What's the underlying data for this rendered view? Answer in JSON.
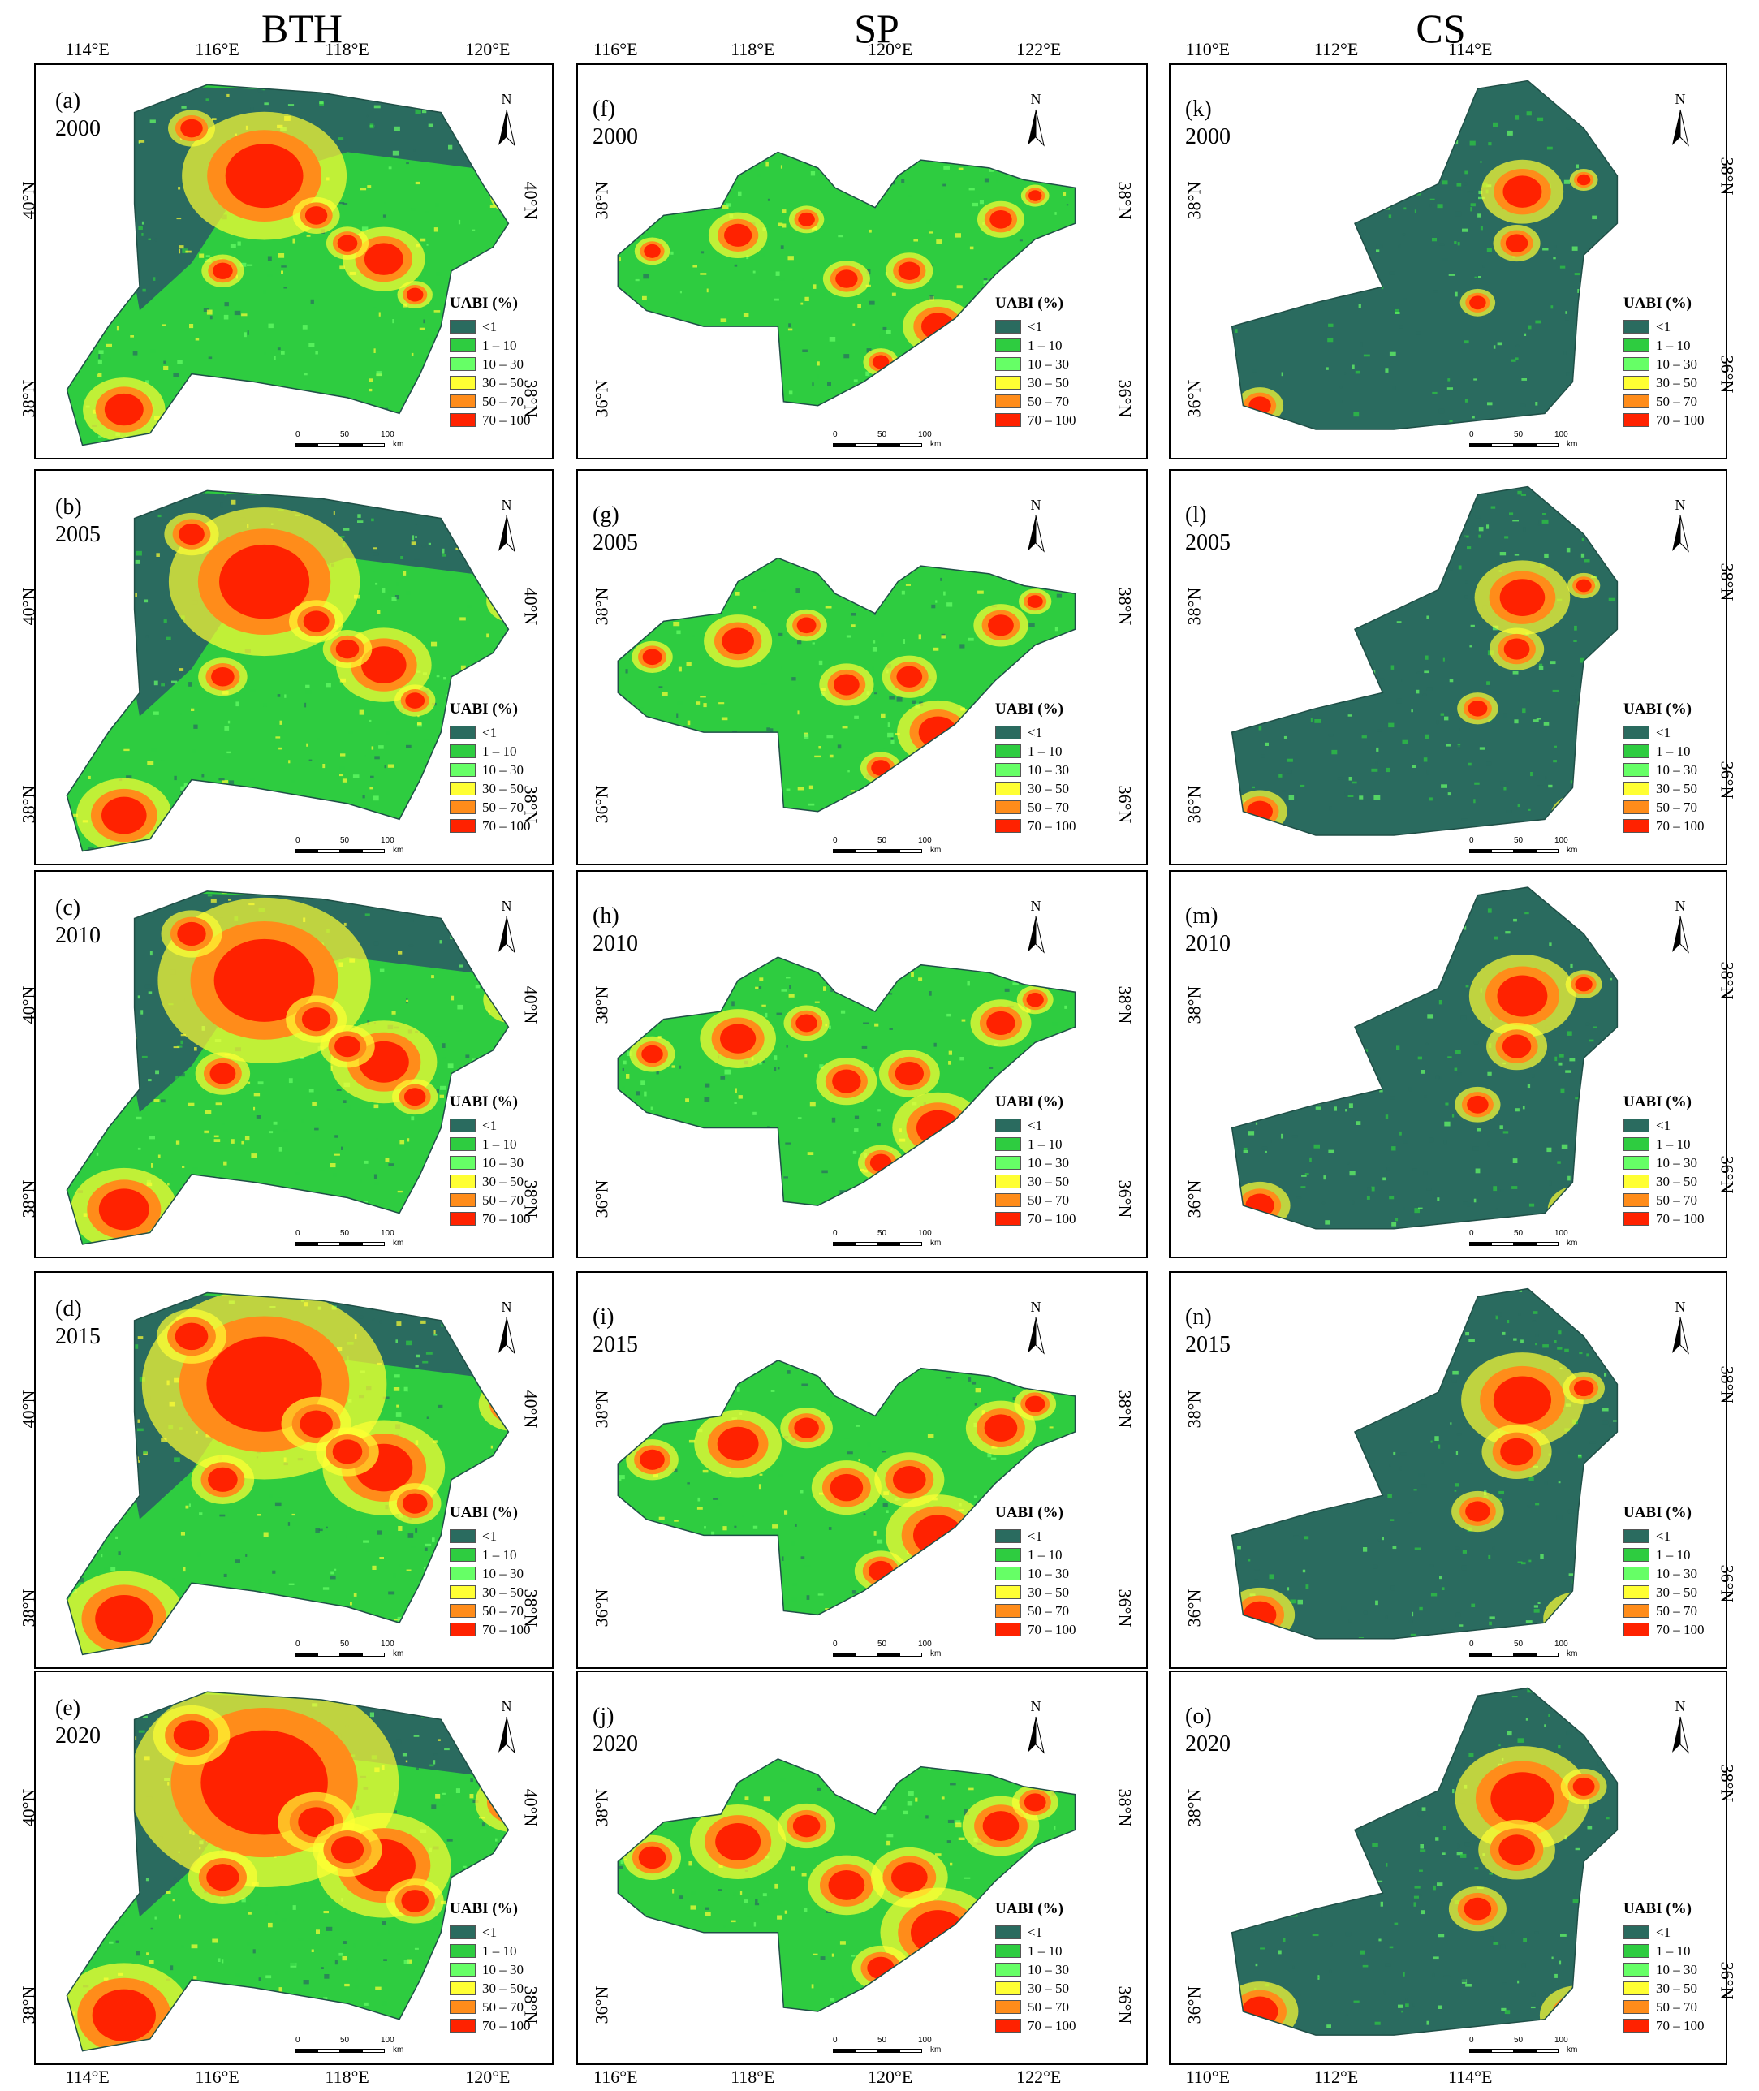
{
  "columns": [
    {
      "id": "bth",
      "title": "BTH"
    },
    {
      "id": "sp",
      "title": "SP"
    },
    {
      "id": "cs",
      "title": "CS"
    }
  ],
  "axis_labels": {
    "bth": {
      "top": [
        "114°E",
        "116°E",
        "118°E",
        "120°E"
      ],
      "bottom": [
        "114°E",
        "116°E",
        "118°E",
        "120°E"
      ],
      "left": [
        "40°N",
        "38°N"
      ],
      "right": [
        "40°N",
        "38°N"
      ]
    },
    "sp": {
      "top": [
        "116°E",
        "118°E",
        "120°E",
        "122°E"
      ],
      "bottom": [
        "116°E",
        "118°E",
        "120°E",
        "122°E"
      ],
      "left": [
        "38°N",
        "36°N"
      ],
      "right": [
        "38°N",
        "36°N"
      ]
    },
    "cs": {
      "top": [
        "110°E",
        "112°E",
        "114°E"
      ],
      "bottom": [
        "110°E",
        "112°E",
        "114°E"
      ],
      "left": [
        "38°N",
        "36°N"
      ],
      "right": [
        "38°N",
        "36°N"
      ]
    }
  },
  "panels": [
    {
      "letter": "(a)",
      "year": "2000",
      "col": "bth"
    },
    {
      "letter": "(b)",
      "year": "2005",
      "col": "bth"
    },
    {
      "letter": "(c)",
      "year": "2010",
      "col": "bth"
    },
    {
      "letter": "(d)",
      "year": "2015",
      "col": "bth"
    },
    {
      "letter": "(e)",
      "year": "2020",
      "col": "bth"
    },
    {
      "letter": "(f)",
      "year": "2000",
      "col": "sp"
    },
    {
      "letter": "(g)",
      "year": "2005",
      "col": "sp"
    },
    {
      "letter": "(h)",
      "year": "2010",
      "col": "sp"
    },
    {
      "letter": "(i)",
      "year": "2015",
      "col": "sp"
    },
    {
      "letter": "(j)",
      "year": "2020",
      "col": "sp"
    },
    {
      "letter": "(k)",
      "year": "2000",
      "col": "cs"
    },
    {
      "letter": "(l)",
      "year": "2005",
      "col": "cs"
    },
    {
      "letter": "(m)",
      "year": "2010",
      "col": "cs"
    },
    {
      "letter": "(n)",
      "year": "2015",
      "col": "cs"
    },
    {
      "letter": "(o)",
      "year": "2020",
      "col": "cs"
    }
  ],
  "legend": {
    "title": "UABI (%)",
    "classes": [
      {
        "label": "<1",
        "color": "#2a6b5f"
      },
      {
        "label": "1 – 10",
        "color": "#2ecc40"
      },
      {
        "label": "10 – 30",
        "color": "#66ff66"
      },
      {
        "label": "30 – 50",
        "color": "#ffff33"
      },
      {
        "label": "50 – 70",
        "color": "#ff8c1a"
      },
      {
        "label": "70 – 100",
        "color": "#ff2200"
      }
    ]
  },
  "north_arrow": {
    "label": "N"
  },
  "scale_bar": {
    "ticks": [
      "0",
      "50",
      "100"
    ],
    "unit": "km"
  },
  "colors": {
    "background_green": "#2ecc40",
    "mountain": "#2a6b5f",
    "urban": "#ff2200",
    "suburb": "#ff8c1a",
    "rural_yellow": "#ffff33"
  }
}
